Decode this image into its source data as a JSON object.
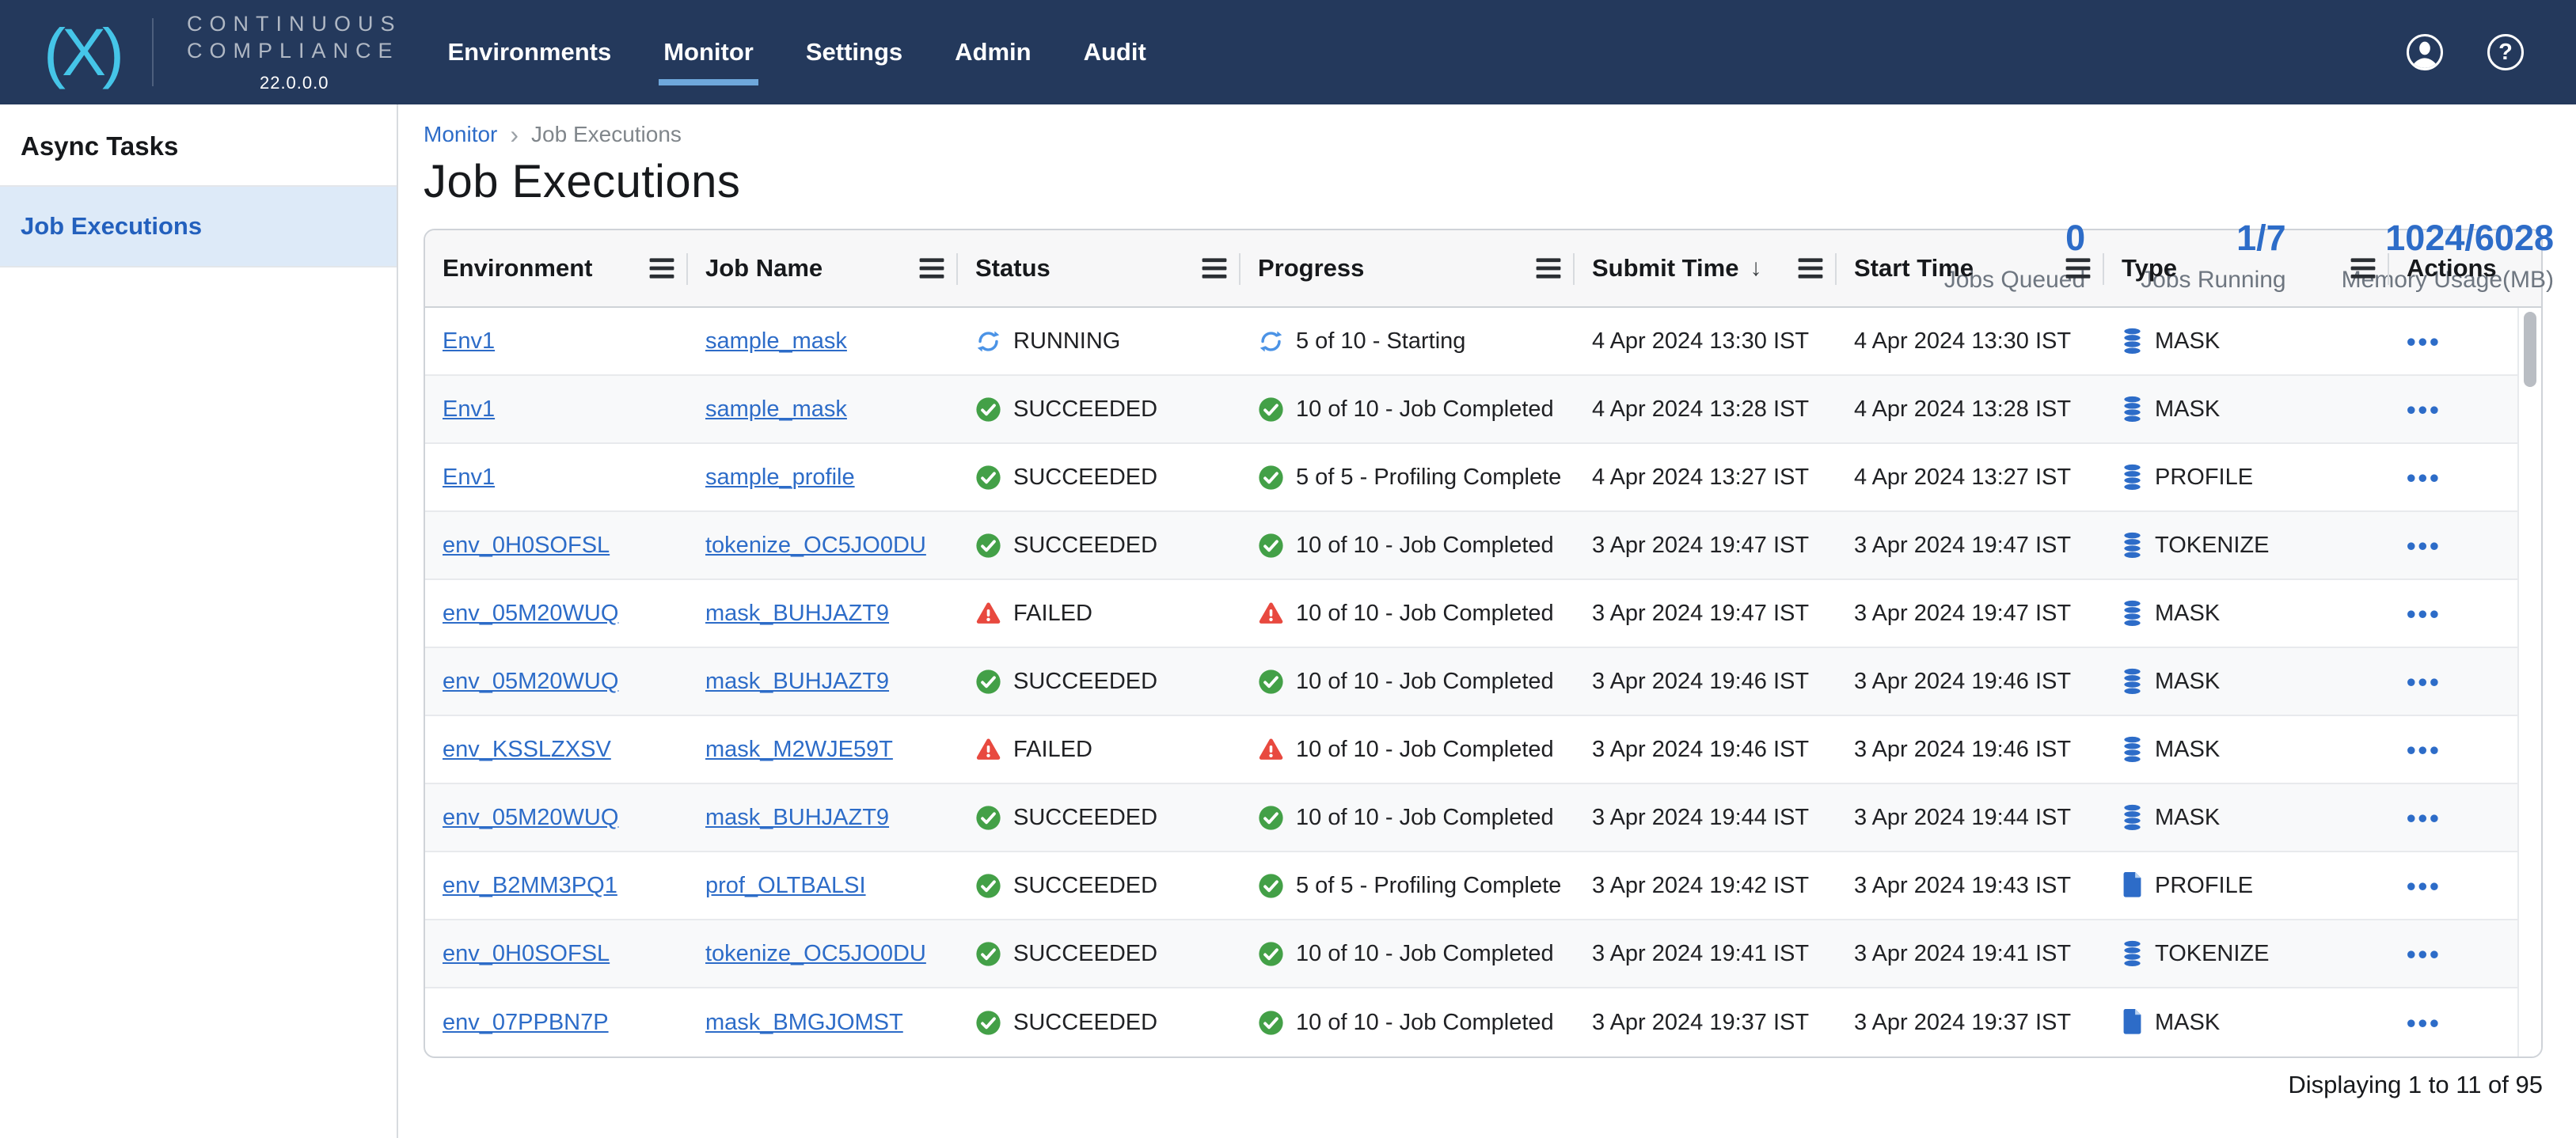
{
  "header": {
    "logo_text": "(X)",
    "brand_line1": "CONTINUOUS",
    "brand_line2": "COMPLIANCE",
    "version": "22.0.0.0",
    "nav": [
      {
        "label": "Environments",
        "active": false
      },
      {
        "label": "Monitor",
        "active": true
      },
      {
        "label": "Settings",
        "active": false
      },
      {
        "label": "Admin",
        "active": false
      },
      {
        "label": "Audit",
        "active": false
      }
    ]
  },
  "sidebar": {
    "title": "Async Tasks",
    "items": [
      {
        "label": "Job Executions",
        "selected": true
      }
    ]
  },
  "breadcrumb": {
    "parent": "Monitor",
    "separator": "›",
    "current": "Job Executions"
  },
  "page": {
    "title": "Job Executions"
  },
  "stats": [
    {
      "value": "0",
      "label": "Jobs Queued"
    },
    {
      "value": "1/7",
      "label": "Jobs Running"
    },
    {
      "value": "1024/6028",
      "label": "Memory Usage(MB)"
    }
  ],
  "table": {
    "columns": [
      "Environment",
      "Job Name",
      "Status",
      "Progress",
      "Submit Time",
      "Start Time",
      "Type",
      "Actions"
    ],
    "sort": {
      "column": "Submit Time",
      "direction": "desc",
      "arrow": "↓"
    },
    "actions_glyph": "•••",
    "rows": [
      {
        "environment": "Env1",
        "job_name": "sample_mask",
        "status": "RUNNING",
        "status_kind": "running",
        "progress": "5 of 10 - Starting",
        "submit_time": "4 Apr 2024 13:30 IST",
        "start_time": "4 Apr 2024 13:30 IST",
        "type": "MASK",
        "type_icon": "database"
      },
      {
        "environment": "Env1",
        "job_name": "sample_mask",
        "status": "SUCCEEDED",
        "status_kind": "success",
        "progress": "10 of 10 - Job Completed",
        "submit_time": "4 Apr 2024 13:28 IST",
        "start_time": "4 Apr 2024 13:28 IST",
        "type": "MASK",
        "type_icon": "database"
      },
      {
        "environment": "Env1",
        "job_name": "sample_profile",
        "status": "SUCCEEDED",
        "status_kind": "success",
        "progress": "5 of 5 - Profiling Complete",
        "submit_time": "4 Apr 2024 13:27 IST",
        "start_time": "4 Apr 2024 13:27 IST",
        "type": "PROFILE",
        "type_icon": "database"
      },
      {
        "environment": "env_0H0SOFSL",
        "job_name": "tokenize_OC5JO0DU",
        "status": "SUCCEEDED",
        "status_kind": "success",
        "progress": "10 of 10 - Job Completed",
        "submit_time": "3 Apr 2024 19:47 IST",
        "start_time": "3 Apr 2024 19:47 IST",
        "type": "TOKENIZE",
        "type_icon": "database"
      },
      {
        "environment": "env_05M20WUQ",
        "job_name": "mask_BUHJAZT9",
        "status": "FAILED",
        "status_kind": "failed",
        "progress": "10 of 10 - Job Completed",
        "submit_time": "3 Apr 2024 19:47 IST",
        "start_time": "3 Apr 2024 19:47 IST",
        "type": "MASK",
        "type_icon": "database"
      },
      {
        "environment": "env_05M20WUQ",
        "job_name": "mask_BUHJAZT9",
        "status": "SUCCEEDED",
        "status_kind": "success",
        "progress": "10 of 10 - Job Completed",
        "submit_time": "3 Apr 2024 19:46 IST",
        "start_time": "3 Apr 2024 19:46 IST",
        "type": "MASK",
        "type_icon": "database"
      },
      {
        "environment": "env_KSSLZXSV",
        "job_name": "mask_M2WJE59T",
        "status": "FAILED",
        "status_kind": "failed",
        "progress": "10 of 10 - Job Completed",
        "submit_time": "3 Apr 2024 19:46 IST",
        "start_time": "3 Apr 2024 19:46 IST",
        "type": "MASK",
        "type_icon": "database"
      },
      {
        "environment": "env_05M20WUQ",
        "job_name": "mask_BUHJAZT9",
        "status": "SUCCEEDED",
        "status_kind": "success",
        "progress": "10 of 10 - Job Completed",
        "submit_time": "3 Apr 2024 19:44 IST",
        "start_time": "3 Apr 2024 19:44 IST",
        "type": "MASK",
        "type_icon": "database"
      },
      {
        "environment": "env_B2MM3PQ1",
        "job_name": "prof_OLTBALSI",
        "status": "SUCCEEDED",
        "status_kind": "success",
        "progress": "5 of 5 - Profiling Complete",
        "submit_time": "3 Apr 2024 19:42 IST",
        "start_time": "3 Apr 2024 19:43 IST",
        "type": "PROFILE",
        "type_icon": "file"
      },
      {
        "environment": "env_0H0SOFSL",
        "job_name": "tokenize_OC5JO0DU",
        "status": "SUCCEEDED",
        "status_kind": "success",
        "progress": "10 of 10 - Job Completed",
        "submit_time": "3 Apr 2024 19:41 IST",
        "start_time": "3 Apr 2024 19:41 IST",
        "type": "TOKENIZE",
        "type_icon": "database"
      },
      {
        "environment": "env_07PPBN7P",
        "job_name": "mask_BMGJOMST",
        "status": "SUCCEEDED",
        "status_kind": "success",
        "progress": "10 of 10 - Job Completed",
        "submit_time": "3 Apr 2024 19:37 IST",
        "start_time": "3 Apr 2024 19:37 IST",
        "type": "MASK",
        "type_icon": "file"
      }
    ],
    "footer": "Displaying 1 to 11 of 95"
  },
  "colors": {
    "topbar": "#24395c",
    "logo": "#45c5e8",
    "accent": "#2d6cc8",
    "success": "#43a047",
    "error": "#e8493f",
    "running": "#4b93e6",
    "selected_bg": "#ddeaf8",
    "selected_text": "#2360bd"
  }
}
